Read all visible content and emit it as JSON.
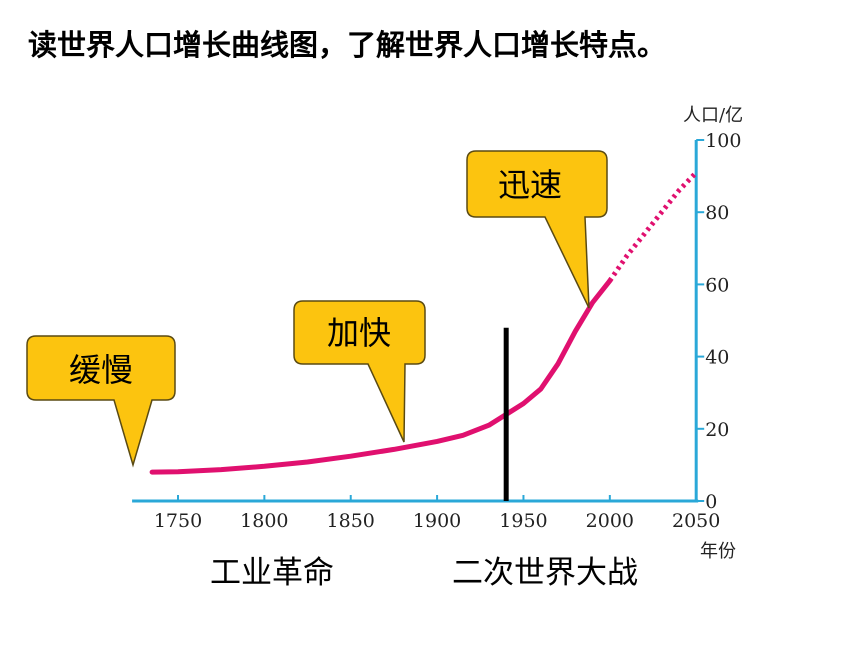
{
  "heading": "读世界人口增长曲线图，了解世界人口增长特点。",
  "captions": {
    "industrial_revolution": "工业革命",
    "ww2": "二次世界大战"
  },
  "chart_data": {
    "type": "line",
    "title": "",
    "xlabel": "年份",
    "ylabel": "人口/亿",
    "xlim": [
      1735,
      2050
    ],
    "ylim": [
      0,
      100
    ],
    "x_ticks": [
      "1750",
      "1800",
      "1850",
      "1900",
      "1950",
      "2000",
      "2050"
    ],
    "y_ticks": [
      "0",
      "20",
      "40",
      "60",
      "80",
      "100"
    ],
    "series": [
      {
        "style": "solid",
        "color": "#e0106f",
        "x": [
          1735,
          1750,
          1775,
          1800,
          1825,
          1850,
          1875,
          1900,
          1915,
          1930,
          1940,
          1950,
          1960,
          1970,
          1980,
          1990,
          2000
        ],
        "y": [
          8,
          8.1,
          8.7,
          9.6,
          10.8,
          12.4,
          14.3,
          16.5,
          18.2,
          21,
          24,
          27,
          31,
          38,
          47,
          55,
          61
        ]
      },
      {
        "style": "dotted",
        "color": "#e0106f",
        "x": [
          2000,
          2010,
          2020,
          2030,
          2040,
          2050
        ],
        "y": [
          61,
          68,
          74,
          80,
          86,
          91
        ]
      }
    ],
    "marker_line_x": 1940,
    "marker_line_top": 48,
    "callouts": [
      "缓慢",
      "加快",
      "迅速"
    ],
    "colors": {
      "axis": "#2aa8d8",
      "callout_fill": "#fcc40f",
      "callout_stroke": "#5a4a12",
      "line": "#e0106f",
      "marker": "#000000"
    }
  }
}
